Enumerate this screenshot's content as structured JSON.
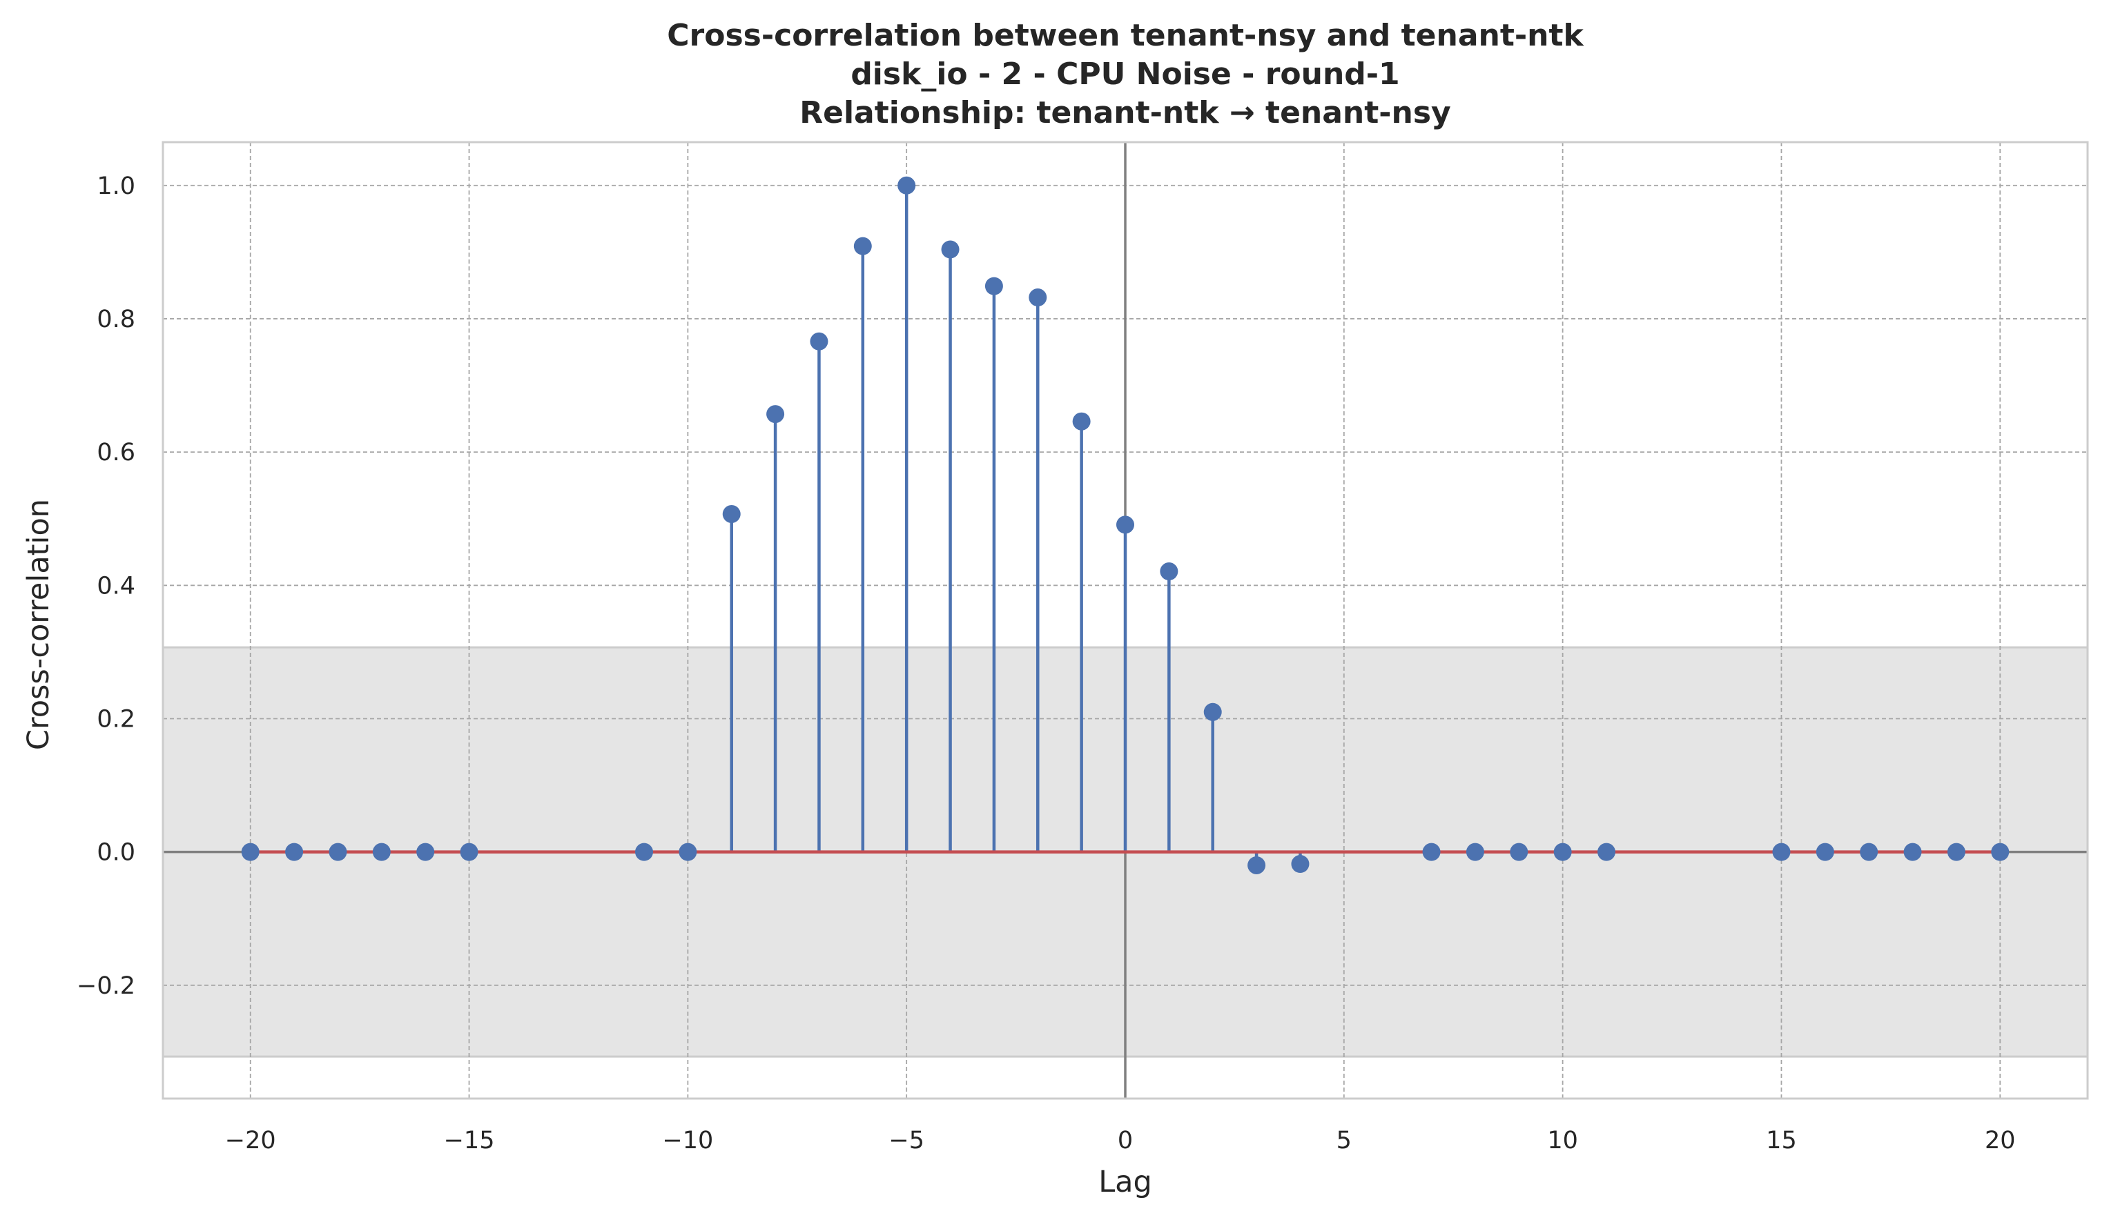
{
  "chart_data": {
    "type": "stem",
    "title_lines": [
      "Cross-correlation between tenant-nsy and tenant-ntk",
      "disk_io - 2 - CPU Noise - round-1",
      "Relationship: tenant-ntk → tenant-nsy"
    ],
    "xlabel": "Lag",
    "ylabel": "Cross-correlation",
    "xlim": [
      -22,
      22
    ],
    "ylim": [
      -0.37,
      1.065
    ],
    "xticks": [
      -20,
      -15,
      -10,
      -5,
      0,
      5,
      10,
      15,
      20
    ],
    "xtick_labels": [
      "−20",
      "−15",
      "−10",
      "−5",
      "0",
      "5",
      "10",
      "15",
      "20"
    ],
    "yticks": [
      -0.2,
      0.0,
      0.2,
      0.4,
      0.6,
      0.8,
      1.0
    ],
    "ytick_labels": [
      "−0.2",
      "0.0",
      "0.2",
      "0.4",
      "0.6",
      "0.8",
      "1.0"
    ],
    "grid": true,
    "confidence_band": [
      -0.307,
      0.307
    ],
    "zero_line": 0,
    "series": [
      {
        "x": [
          -20,
          -19,
          -18,
          -17,
          -16,
          -15,
          -11,
          -10,
          -9,
          -8,
          -7,
          -6,
          -5,
          -4,
          -3,
          -2,
          -1,
          0,
          1,
          2,
          3,
          4,
          7,
          8,
          9,
          10,
          11,
          15,
          16,
          17,
          18,
          19,
          20
        ],
        "values": [
          0,
          0,
          0,
          0,
          0,
          0,
          0,
          0,
          0.507,
          0.657,
          0.766,
          0.909,
          1.0,
          0.904,
          0.849,
          0.832,
          0.646,
          0.491,
          0.421,
          0.21,
          -0.02,
          -0.018,
          0,
          0,
          0,
          0,
          0,
          0,
          0,
          0,
          0,
          0,
          0
        ]
      }
    ],
    "colors": {
      "stem": "#4c72b0",
      "baseline": "#c44e52",
      "band": "#e5e5e5",
      "band_edge": "#cccccc",
      "grid": "#a6a6a6",
      "axis_line": "#808080"
    }
  }
}
